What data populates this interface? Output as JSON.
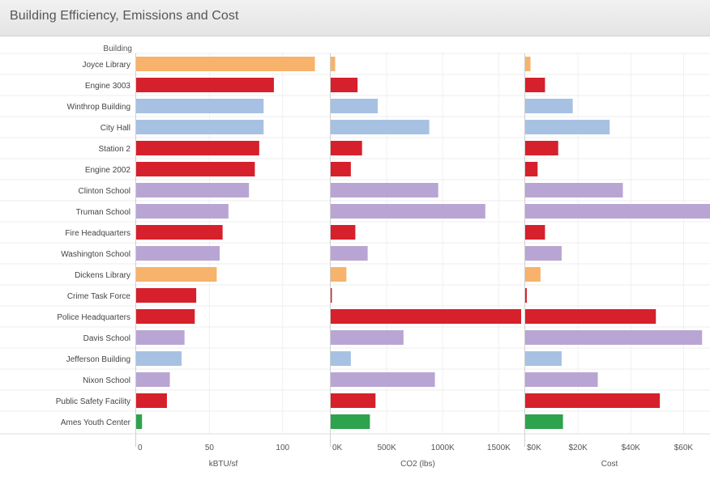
{
  "title": "Building Efficiency, Emissions and Cost",
  "chart_data": {
    "type": "bar",
    "orientation": "horizontal",
    "row_header": "Building",
    "categories": [
      "Joyce Library",
      "Engine 3003",
      "Winthrop Building",
      "City Hall",
      "Station 2",
      "Engine 2002",
      "Clinton School",
      "Truman School",
      "Fire Headquarters",
      "Washington School",
      "Dickens Library",
      "Crime Task Force",
      "Police Headquarters",
      "Davis School",
      "Jefferson Building",
      "Nixon School",
      "Public Safety Facility",
      "Ames Youth Center"
    ],
    "category_groups": [
      "library",
      "fire",
      "admin",
      "admin",
      "fire",
      "fire",
      "school",
      "school",
      "fire",
      "school",
      "library",
      "fire",
      "fire",
      "school",
      "admin",
      "school",
      "fire",
      "youth"
    ],
    "group_colors": {
      "library": "#f7b26b",
      "fire": "#d6202b",
      "admin": "#a7c1e3",
      "school": "#b9a5d3",
      "youth": "#2ea24d"
    },
    "panels": [
      {
        "key": "kbtu",
        "xlabel": "kBTU/sf",
        "xlim": [
          0,
          130
        ],
        "ticks": [
          0,
          50,
          100
        ],
        "tick_labels": [
          "0",
          "50",
          "100"
        ],
        "values": [
          122,
          94,
          87,
          87,
          84,
          81,
          77,
          63,
          59,
          57,
          55,
          41,
          40,
          33,
          31,
          23,
          21,
          4
        ]
      },
      {
        "key": "co2",
        "xlabel": "CO2 (lbs)",
        "xlim": [
          0,
          1700000
        ],
        "ticks": [
          0,
          500000,
          1000000,
          1500000
        ],
        "tick_labels": [
          "0K",
          "500K",
          "1000K",
          "1500K"
        ],
        "values": [
          40000,
          240000,
          420000,
          880000,
          280000,
          180000,
          960000,
          1380000,
          220000,
          330000,
          140000,
          5000,
          1700000,
          650000,
          180000,
          930000,
          400000,
          350000
        ]
      },
      {
        "key": "cost",
        "xlabel": "Cost",
        "xlim": [
          0,
          70000
        ],
        "ticks": [
          0,
          20000,
          40000,
          60000
        ],
        "tick_labels": [
          "$0K",
          "$20K",
          "$40K",
          "$60K"
        ],
        "values": [
          2000,
          7500,
          18000,
          32000,
          12500,
          4700,
          37000,
          70000,
          7500,
          13800,
          5800,
          600,
          49500,
          67000,
          13800,
          27500,
          51000,
          14300
        ]
      }
    ]
  }
}
